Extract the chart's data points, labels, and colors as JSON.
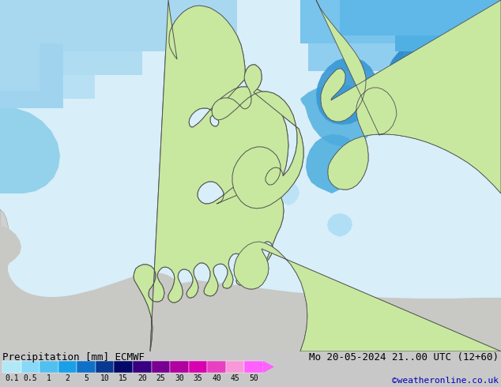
{
  "title_left": "Precipitation [mm] ECMWF",
  "title_right": "Mo 20-05-2024 21..00 UTC (12+60)",
  "credit": "©weatheronline.co.uk",
  "colorbar_levels": [
    "0.1",
    "0.5",
    "1",
    "2",
    "5",
    "10",
    "15",
    "20",
    "25",
    "30",
    "35",
    "40",
    "45",
    "50"
  ],
  "colorbar_colors": [
    "#b0e8f8",
    "#88d8f8",
    "#50c0f0",
    "#18a0e8",
    "#1070c8",
    "#083890",
    "#040868",
    "#380080",
    "#780090",
    "#b000a0",
    "#d800b0",
    "#e840c0",
    "#f898d8",
    "#ff60ff"
  ],
  "land_green": "#c8e8a0",
  "land_light": "#d8f0b8",
  "sea_color": "#d8eef8",
  "mainland_gray": "#d0d0d0",
  "border_color": "#505050",
  "fig_bg": "#c8c8c8",
  "bottom_bg": "#c8c8c8",
  "credit_color": "#0000bb",
  "title_fontsize": 9,
  "credit_fontsize": 8,
  "label_fontsize": 7
}
